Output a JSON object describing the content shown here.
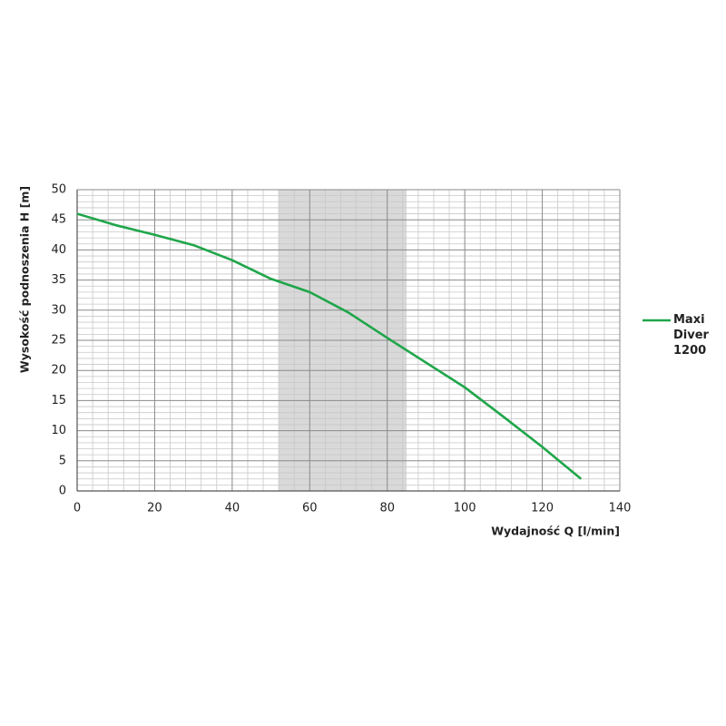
{
  "chart_data": {
    "type": "line",
    "x_label": "Wydajność Q [l/min]",
    "y_label": "Wysokość podnoszenia H [m]",
    "x": [
      0,
      10,
      20,
      30,
      40,
      50,
      60,
      70,
      80,
      90,
      100,
      110,
      120,
      130
    ],
    "series": [
      {
        "name": "Maxi Diver 1200",
        "color": "#1fa64a",
        "values": [
          46,
          44.1,
          42.5,
          40.8,
          38.3,
          35.2,
          33,
          29.6,
          25.4,
          21.3,
          17.2,
          12.3,
          7.3,
          2
        ]
      }
    ],
    "xlim": [
      0,
      140
    ],
    "xticks": [
      0,
      20,
      40,
      60,
      80,
      100,
      120,
      140
    ],
    "ylim": [
      0,
      50
    ],
    "yticks": [
      0,
      5,
      10,
      15,
      20,
      25,
      30,
      35,
      40,
      45,
      50
    ],
    "highlight_range": [
      52,
      85
    ],
    "highlight_color": "#d9d9d9",
    "grid": true,
    "legend": "right"
  }
}
